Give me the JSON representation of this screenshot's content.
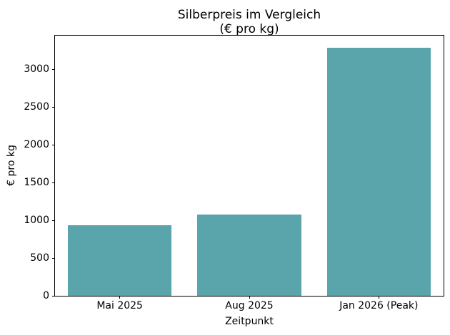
{
  "title_lines": [
    "Silberpreis im Vergleich",
    "(€ pro kg)"
  ],
  "chart_data": {
    "type": "bar",
    "title": "Silberpreis im Vergleich (€ pro kg)",
    "categories": [
      "Mai 2025",
      "Aug 2025",
      "Jan 2026 (Peak)"
    ],
    "values": [
      930,
      1080,
      3280
    ],
    "xlabel": "Zeitpunkt",
    "ylabel": "€ pro kg",
    "ylim": [
      0,
      3444
    ],
    "yticks": [
      0,
      500,
      1000,
      1500,
      2000,
      2500,
      3000
    ],
    "bar_color": "#5aa4ac",
    "bar_width_fraction": 0.8,
    "grid": false,
    "legend": "none"
  }
}
